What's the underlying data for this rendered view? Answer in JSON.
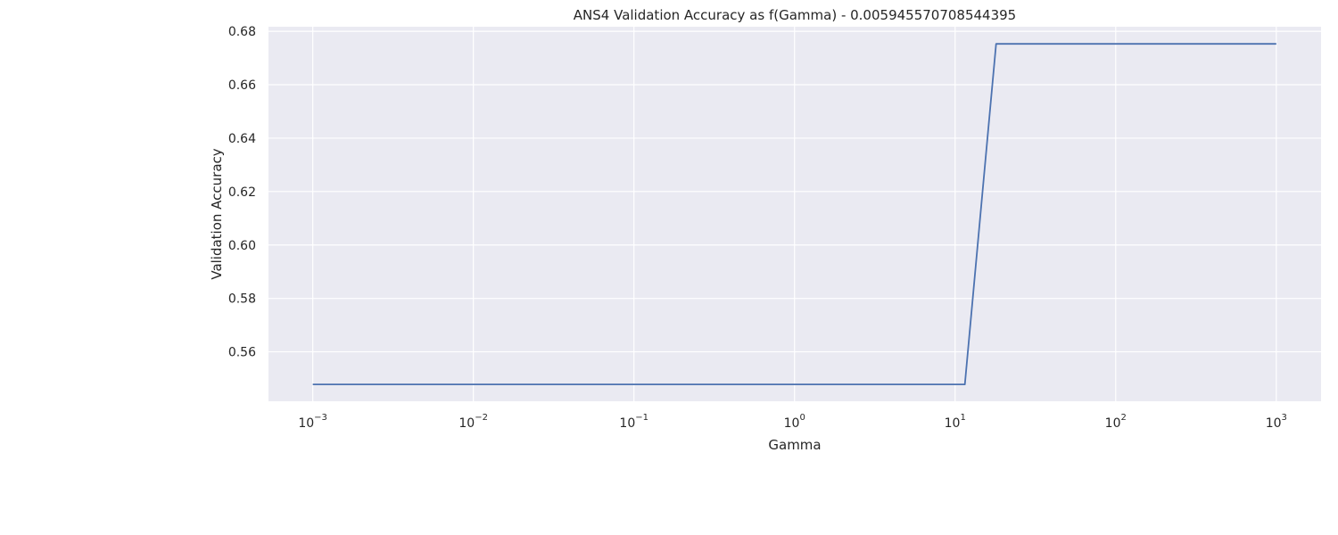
{
  "chart_data": {
    "type": "line",
    "title": "ANS4 Validation Accuracy as f(Gamma) - 0.005945570708544395",
    "xlabel": "Gamma",
    "ylabel": "Validation Accuracy",
    "xscale": "log",
    "xlim": [
      0.00053,
      1900
    ],
    "ylim": [
      0.5415,
      0.6817
    ],
    "grid": true,
    "legend": "none",
    "x_ticks": [
      {
        "value": 0.001,
        "base": "10",
        "exponent": "−3"
      },
      {
        "value": 0.01,
        "base": "10",
        "exponent": "−2"
      },
      {
        "value": 0.1,
        "base": "10",
        "exponent": "−1"
      },
      {
        "value": 1,
        "base": "10",
        "exponent": "0"
      },
      {
        "value": 10,
        "base": "10",
        "exponent": "1"
      },
      {
        "value": 100,
        "base": "10",
        "exponent": "2"
      },
      {
        "value": 1000,
        "base": "10",
        "exponent": "3"
      }
    ],
    "y_ticks": [
      {
        "value": 0.56,
        "label": "0.56"
      },
      {
        "value": 0.58,
        "label": "0.58"
      },
      {
        "value": 0.6,
        "label": "0.60"
      },
      {
        "value": 0.62,
        "label": "0.62"
      },
      {
        "value": 0.64,
        "label": "0.64"
      },
      {
        "value": 0.66,
        "label": "0.66"
      },
      {
        "value": 0.68,
        "label": "0.68"
      }
    ],
    "series": [
      {
        "color": "#4c72b0",
        "x": [
          0.001,
          0.001425,
          0.002031,
          0.002894,
          0.004125,
          0.005878,
          0.008377,
          0.01194,
          0.01701,
          0.02424,
          0.03455,
          0.04924,
          0.07017,
          0.1,
          0.1425,
          0.2031,
          0.2894,
          0.4125,
          0.5878,
          0.8377,
          1.194,
          1.701,
          2.424,
          3.455,
          4.924,
          7.017,
          10,
          11.5,
          18.0,
          25.6,
          36.5,
          52.0,
          74.1,
          105.6,
          150.5,
          214.5,
          305.7,
          435.7,
          620.9,
          884.9,
          1000
        ],
        "y": [
          0.5478,
          0.5478,
          0.5478,
          0.5478,
          0.5478,
          0.5478,
          0.5478,
          0.5478,
          0.5478,
          0.5478,
          0.5478,
          0.5478,
          0.5478,
          0.5478,
          0.5478,
          0.5478,
          0.5478,
          0.5478,
          0.5478,
          0.5478,
          0.5478,
          0.5478,
          0.5478,
          0.5478,
          0.5478,
          0.5478,
          0.5478,
          0.5478,
          0.6753,
          0.6753,
          0.6753,
          0.6753,
          0.6753,
          0.6753,
          0.6753,
          0.6753,
          0.6753,
          0.6753,
          0.6753,
          0.6753,
          0.6753
        ]
      }
    ],
    "colors": {
      "plot_background": "#eaeaf2",
      "grid": "#ffffff",
      "line": "#4c72b0",
      "text": "#262626"
    }
  }
}
